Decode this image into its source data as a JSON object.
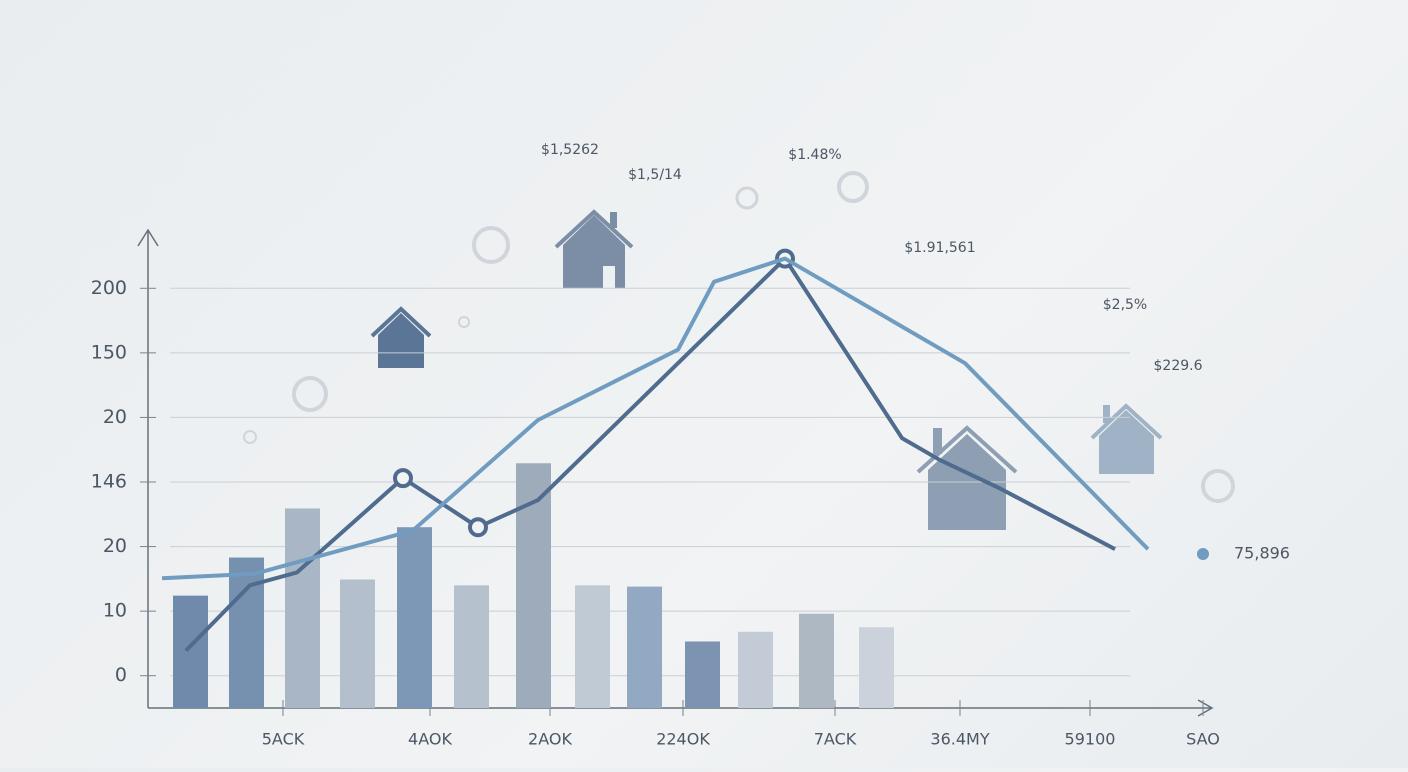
{
  "chart_data": {
    "type": "bar_line",
    "xlim": [
      0,
      1052
    ],
    "ylim": [
      -0.5,
      6.5
    ],
    "xticks": [
      {
        "value": 135,
        "label": "5ACK"
      },
      {
        "value": 282,
        "label": "4AOK"
      },
      {
        "value": 402,
        "label": "2AOK"
      },
      {
        "value": 535,
        "label": "224OK"
      },
      {
        "value": 687,
        "label": "7ACK"
      },
      {
        "value": 812,
        "label": "36.4MY"
      },
      {
        "value": 942,
        "label": "59100"
      },
      {
        "value": 1055,
        "label": "SAO"
      }
    ],
    "yticks": [
      {
        "value": 0,
        "label": "0"
      },
      {
        "value": 1,
        "label": "10"
      },
      {
        "value": 2,
        "label": "20"
      },
      {
        "value": 3,
        "label": "146"
      },
      {
        "value": 4,
        "label": "20"
      },
      {
        "value": 5,
        "label": "150"
      },
      {
        "value": 6,
        "label": "200"
      }
    ],
    "grid": true,
    "bars": {
      "x": [
        42.5,
        98.5,
        154.5,
        209.5,
        266.5,
        323.5,
        385.5,
        444.5,
        496.5,
        554.5,
        607.5,
        668.5,
        728.5
      ],
      "values": [
        1.24,
        1.83,
        2.59,
        1.49,
        2.3,
        1.4,
        3.29,
        1.4,
        1.38,
        0.53,
        0.68,
        0.96,
        0.75
      ],
      "colors": [
        "#6f8aaa",
        "#7690b0",
        "#a9b6c6",
        "#b3bfcd",
        "#7d97b6",
        "#b6c1ce",
        "#9eabba",
        "#c0cad5",
        "#93a9c3",
        "#7d93b2",
        "#c3cbd6",
        "#aeb8c3",
        "#cbd2db"
      ]
    },
    "series": [
      {
        "color": "#4f6b8d",
        "x": [
          38,
          102,
          149,
          255,
          330,
          390,
          637,
          754,
          792,
          852,
          967
        ],
        "values": [
          0.39,
          1.4,
          1.6,
          3.06,
          2.3,
          2.72,
          6.46,
          3.68,
          3.34,
          2.9,
          1.96
        ],
        "markers": [
          3,
          4,
          6
        ]
      },
      {
        "color": "#6f9cc0",
        "x": [
          14,
          107,
          265,
          390,
          530,
          566,
          637,
          817,
          1000
        ],
        "values": [
          1.51,
          1.58,
          2.25,
          3.96,
          5.05,
          6.1,
          6.46,
          4.84,
          1.96
        ]
      }
    ],
    "annotations": [
      "$1,5262",
      "$1,5/14",
      "$1.48%",
      "$1.91,561",
      "$2,5%",
      "$229.6",
      "75,896"
    ]
  }
}
